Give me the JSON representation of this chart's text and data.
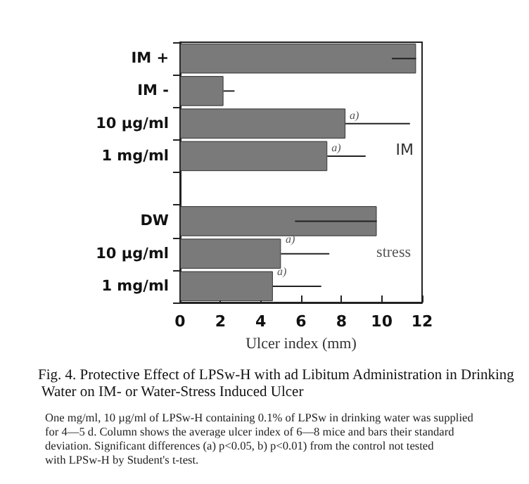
{
  "chart_data": {
    "type": "bar",
    "orientation": "horizontal",
    "title": "Fig. 4. Protective Effect of LPSw-H with ad Libitum Administration in Drinking Water on IM- or Water-Stress Induced Ulcer",
    "xlabel": "Ulcer index (mm)",
    "categories": [
      "IM +",
      "IM -",
      "10 µg/ml",
      "1 mg/ml",
      null,
      "DW",
      "10 µg/ml",
      "1 mg/ml"
    ],
    "values": [
      11.7,
      2.15,
      8.2,
      7.3,
      null,
      9.75,
      5.0,
      4.6
    ],
    "errors": [
      [
        10.5,
        11.7
      ],
      [
        2.15,
        2.7
      ],
      [
        8.2,
        11.4
      ],
      [
        7.3,
        9.2
      ],
      null,
      [
        5.7,
        9.75
      ],
      [
        5.0,
        7.4
      ],
      [
        4.6,
        7.0
      ]
    ],
    "color": "#7a7a7a",
    "xlim": [
      0,
      12
    ],
    "xticks": [
      0,
      2,
      4,
      6,
      8,
      10,
      12
    ],
    "grid": false,
    "annotations": [
      "IM",
      "stress",
      "One mg/ml, 10 µg/ml of LPSw-H containing 0.1% of LPSw in drinking water was supplied for 4—5 d. Column shows the average ulcer index of 6—8 mice and bars their standard deviation. Significant differences (a) p<0.05, b) p<0.01) from the control not tested with LPSw-H by Student's t-test.",
      {
        "text": "a)",
        "x": 8.2,
        "y": "10 µg/ml"
      },
      {
        "text": "a)",
        "x": 7.3,
        "y": "1 mg/ml"
      },
      "a)",
      "a)"
    ]
  }
}
